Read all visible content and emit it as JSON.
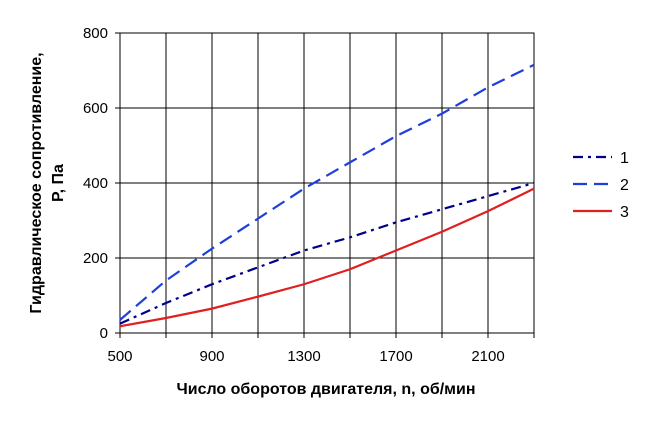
{
  "chart_data": {
    "type": "line",
    "xlabel": "Число оборотов двигателя, n, об/мин",
    "ylabel_line1": "Гидравлическое сопротивление,",
    "ylabel_line2": "P, Па",
    "xlim": [
      500,
      2300
    ],
    "ylim": [
      0,
      800
    ],
    "x_ticks": [
      500,
      900,
      1300,
      1700,
      2100
    ],
    "y_ticks": [
      0,
      200,
      400,
      600,
      800
    ],
    "x_grid": [
      500,
      700,
      900,
      1100,
      1300,
      1500,
      1700,
      1900,
      2100,
      2300
    ],
    "grid": true,
    "legend_position": "right",
    "series": [
      {
        "name": "1",
        "color": "#00008B",
        "dash": "dash-dot",
        "x": [
          500,
          700,
          900,
          1100,
          1300,
          1500,
          1700,
          1900,
          2100,
          2300
        ],
        "y": [
          25,
          80,
          130,
          175,
          220,
          255,
          295,
          330,
          365,
          400
        ]
      },
      {
        "name": "2",
        "color": "#1f3fdc",
        "dash": "dash",
        "x": [
          500,
          700,
          900,
          1100,
          1300,
          1500,
          1700,
          1900,
          2100,
          2300
        ],
        "y": [
          35,
          140,
          225,
          305,
          385,
          455,
          525,
          585,
          655,
          715
        ]
      },
      {
        "name": "3",
        "color": "#e02020",
        "dash": "solid",
        "x": [
          500,
          700,
          900,
          1100,
          1300,
          1500,
          1700,
          1900,
          2100,
          2300
        ],
        "y": [
          18,
          40,
          65,
          97,
          130,
          170,
          220,
          270,
          325,
          385
        ]
      }
    ]
  }
}
